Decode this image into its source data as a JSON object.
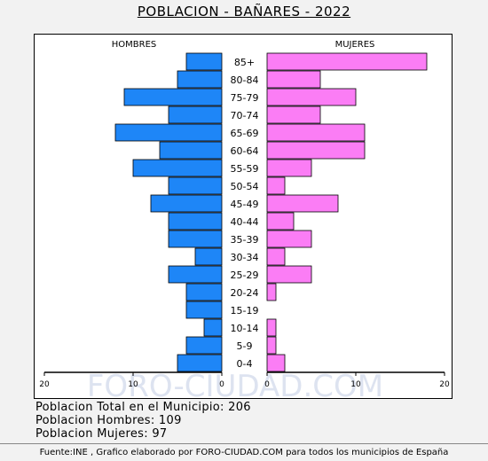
{
  "title": "POBLACION - BAÑARES - 2022",
  "chart_data": {
    "type": "bar",
    "orientation": "horizontal",
    "pyramid": true,
    "categories": [
      "85+",
      "80-84",
      "75-79",
      "70-74",
      "65-69",
      "60-64",
      "55-59",
      "50-54",
      "45-49",
      "40-44",
      "35-39",
      "30-34",
      "25-29",
      "20-24",
      "15-19",
      "10-14",
      "5-9",
      "0-4"
    ],
    "series": [
      {
        "name": "HOMBRES",
        "color": "#1e86f7",
        "values": [
          4,
          5,
          11,
          6,
          12,
          7,
          10,
          6,
          8,
          6,
          6,
          3,
          6,
          4,
          4,
          2,
          4,
          5
        ]
      },
      {
        "name": "MUJERES",
        "color": "#fb7df5",
        "values": [
          18,
          6,
          10,
          6,
          11,
          11,
          5,
          2,
          8,
          3,
          5,
          2,
          5,
          1,
          0,
          1,
          1,
          2
        ]
      }
    ],
    "xlim": [
      0,
      20
    ],
    "x_ticks_left": [
      "20",
      "10",
      "0"
    ],
    "x_ticks_right": [
      "0",
      "10",
      "20"
    ],
    "watermark": "FORO-CIUDAD.COM"
  },
  "summary": {
    "total": "Poblacion Total en el Municipio: 206",
    "men": "Poblacion Hombres: 109",
    "women": "Poblacion Mujeres: 97"
  },
  "footer": "Fuente:INE , Grafico elaborado por FORO-CIUDAD.COM para todos los municipios de España"
}
